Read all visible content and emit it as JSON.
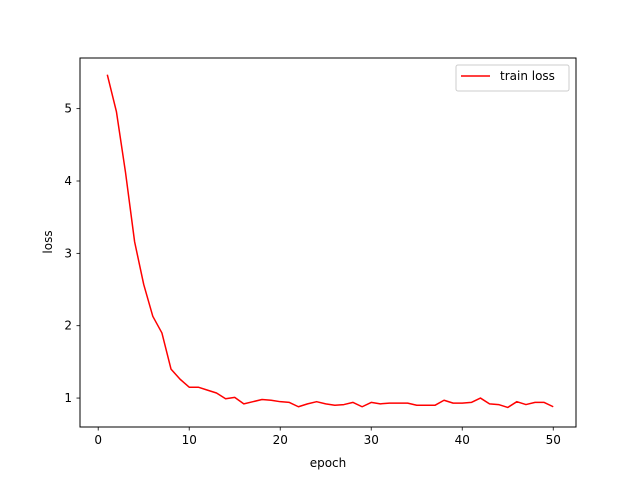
{
  "chart_data": {
    "type": "line",
    "title": "",
    "xlabel": "epoch",
    "ylabel": "loss",
    "xlim": [
      -2.0,
      52.5
    ],
    "ylim": [
      0.6,
      5.7
    ],
    "xticks": [
      0,
      10,
      20,
      30,
      40,
      50
    ],
    "yticks": [
      1,
      2,
      3,
      4,
      5
    ],
    "grid": false,
    "legend_position": "top-right",
    "series": [
      {
        "name": "train loss",
        "color": "#ff0000",
        "x": [
          1,
          2,
          3,
          4,
          5,
          6,
          7,
          8,
          9,
          10,
          11,
          12,
          13,
          14,
          15,
          16,
          17,
          18,
          19,
          20,
          21,
          22,
          23,
          24,
          25,
          26,
          27,
          28,
          29,
          30,
          31,
          32,
          33,
          34,
          35,
          36,
          37,
          38,
          39,
          40,
          41,
          42,
          43,
          44,
          45,
          46,
          47,
          48,
          49,
          50
        ],
        "y": [
          5.47,
          4.96,
          4.12,
          3.16,
          2.57,
          2.13,
          1.9,
          1.4,
          1.26,
          1.15,
          1.15,
          1.11,
          1.07,
          0.99,
          1.01,
          0.92,
          0.95,
          0.98,
          0.97,
          0.95,
          0.94,
          0.88,
          0.92,
          0.95,
          0.92,
          0.9,
          0.91,
          0.94,
          0.88,
          0.94,
          0.92,
          0.93,
          0.93,
          0.93,
          0.9,
          0.9,
          0.9,
          0.97,
          0.93,
          0.93,
          0.94,
          1.0,
          0.92,
          0.91,
          0.87,
          0.95,
          0.91,
          0.94,
          0.94,
          0.88
        ]
      }
    ]
  }
}
